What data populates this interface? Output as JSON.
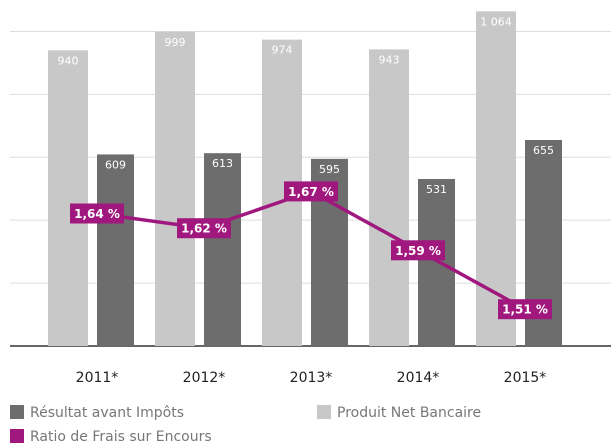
{
  "chart_data": {
    "type": "bar",
    "categories": [
      "2011*",
      "2012*",
      "2013*",
      "2014*",
      "2015*"
    ],
    "series": [
      {
        "name": "Produit Net Bancaire",
        "color": "#c8c8c8",
        "values": [
          940,
          999,
          974,
          943,
          1064
        ],
        "value_labels": [
          "940",
          "999",
          "974",
          "943",
          "1 064"
        ]
      },
      {
        "name": "Résultat avant Impôts",
        "color": "#6d6d6d",
        "values": [
          609,
          613,
          595,
          531,
          655
        ]
      },
      {
        "name": "Ratio de Frais sur Encours",
        "color": "#a0177e",
        "type": "line",
        "axis": "y2",
        "values": [
          1.64,
          1.62,
          1.67,
          1.59,
          1.51
        ],
        "value_labels": [
          "1,64 %",
          "1,62 %",
          "1,67 %",
          "1,59 %",
          "1,51 %"
        ]
      }
    ],
    "ylim": [
      0,
      1100
    ],
    "yticks": [
      0,
      200,
      400,
      600,
      800,
      1000
    ],
    "y2lim": [
      1.46,
      1.93
    ],
    "grid": true,
    "legend": "bottom"
  }
}
